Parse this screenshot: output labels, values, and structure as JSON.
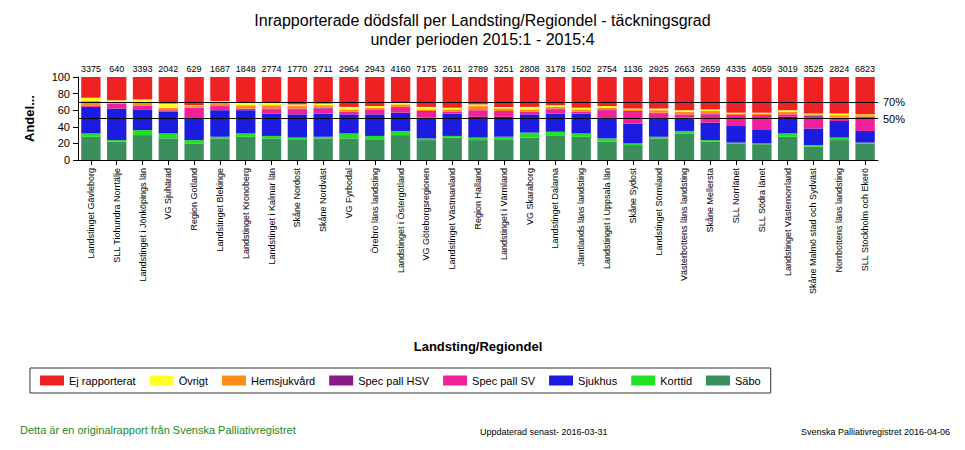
{
  "chart_data": {
    "type": "bar",
    "stacked": true,
    "grid": false,
    "legend": "bottom",
    "title": "Inrapporterade dödsfall per Landsting/Regiondel - täckningsgrad\nunder perioden 2015:1 - 2015:4",
    "x_label": "Landsting/Regiondel",
    "y_label": "Andel...",
    "categories": [
      "Landstinget Gävleborg",
      "SLL Tiohundra Norrtälje",
      "Landstinget i Jönköpings län",
      "VG Sjuhärad",
      "Region Gotland",
      "Landstinget Blekinge",
      "Landstinget Kronoberg",
      "Landstinget i Kalmar län",
      "Skåne Nordost",
      "Skåne Nordväst",
      "VG Fyrbodal",
      "Örebro läns landsting",
      "Landstinget i Östergötland",
      "VG Göteborgsregionen",
      "Landstinget Västmanland",
      "Region Halland",
      "Landstinget i Värmland",
      "VG Skaraborg",
      "Landstinget Dalarna",
      "Jämtlands läns landsting",
      "Landstinget i Uppsala län",
      "Skåne Sydost",
      "Landstinget Sörmland",
      "Västerbottens läns landsting",
      "Skåne Mellersta",
      "SLL Norrlänet",
      "SLL Södra länet",
      "Landstinget Västernorrland",
      "Skåne Malmö stad och Sydväst",
      "Norrbottens läns landsting",
      "SLL Stockholm och Ekerö"
    ],
    "totals": [
      3375,
      640,
      3393,
      2042,
      629,
      1687,
      1848,
      2774,
      1770,
      2711,
      2964,
      2943,
      4160,
      7175,
      2611,
      2789,
      3251,
      2808,
      3178,
      1502,
      2754,
      1136,
      2925,
      2663,
      2659,
      4335,
      4059,
      3019,
      3525,
      2824,
      6823
    ],
    "series": [
      {
        "name": "Säbo",
        "color": "#3a8f5c",
        "values": [
          28,
          22,
          30,
          26,
          20,
          26,
          28,
          26,
          25,
          26,
          26,
          25,
          30,
          24,
          27,
          24,
          24,
          27,
          29,
          28,
          22,
          18,
          26,
          32,
          22,
          20,
          19,
          28,
          16,
          24,
          20
        ]
      },
      {
        "name": "Korttid",
        "color": "#22e022",
        "values": [
          4,
          2,
          6,
          6,
          4,
          2,
          4,
          3,
          2,
          2,
          6,
          4,
          5,
          2,
          2,
          3,
          4,
          6,
          5,
          4,
          4,
          2,
          2,
          3,
          2,
          1,
          1,
          4,
          2,
          3,
          1
        ]
      },
      {
        "name": "Sjukhus",
        "color": "#1c1ce0",
        "values": [
          32,
          38,
          25,
          26,
          26,
          32,
          28,
          27,
          28,
          28,
          23,
          26,
          22,
          25,
          27,
          25,
          24,
          22,
          22,
          24,
          24,
          24,
          22,
          16,
          21,
          20,
          17,
          20,
          20,
          20,
          14
        ]
      },
      {
        "name": "Spec pall SV",
        "color": "#f0209a",
        "values": [
          1,
          6,
          4,
          2,
          13,
          5,
          2,
          5,
          6,
          6,
          3,
          6,
          6,
          7,
          2,
          8,
          7,
          3,
          5,
          2,
          10,
          14,
          6,
          4,
          10,
          12,
          16,
          3,
          14,
          4,
          16
        ]
      },
      {
        "name": "Spec pall HSV",
        "color": "#8a1a8a",
        "values": [
          0,
          0,
          0,
          0,
          0,
          0,
          0,
          1,
          1,
          1,
          0,
          0,
          1,
          1,
          0,
          0,
          0,
          0,
          1,
          0,
          1,
          1,
          1,
          0,
          1,
          1,
          1,
          0,
          1,
          0,
          1
        ]
      },
      {
        "name": "Hemsjukvård",
        "color": "#ff8c1a",
        "values": [
          6,
          2,
          4,
          3,
          2,
          4,
          4,
          4,
          3,
          3,
          3,
          2,
          3,
          2,
          3,
          5,
          3,
          3,
          2,
          3,
          2,
          2,
          3,
          3,
          3,
          2,
          2,
          3,
          2,
          3,
          2
        ]
      },
      {
        "name": "Övrigt",
        "color": "#ffff26",
        "values": [
          4,
          2,
          4,
          5,
          1,
          2,
          3,
          3,
          2,
          2,
          3,
          2,
          2,
          3,
          2,
          2,
          2,
          3,
          2,
          2,
          2,
          1,
          2,
          2,
          2,
          1,
          1,
          2,
          1,
          2,
          1
        ]
      },
      {
        "name": "Ej rapporterat",
        "color": "#ee2222",
        "values": [
          25,
          28,
          27,
          32,
          34,
          29,
          31,
          31,
          33,
          32,
          36,
          35,
          31,
          36,
          37,
          33,
          36,
          36,
          34,
          37,
          35,
          38,
          38,
          40,
          39,
          43,
          43,
          40,
          44,
          44,
          45
        ]
      }
    ],
    "reference_lines": [
      {
        "value": 70,
        "label": "70%"
      },
      {
        "value": 50,
        "label": "50%"
      }
    ],
    "ylim": [
      0,
      100
    ],
    "yticks": [
      0,
      20,
      40,
      60,
      80,
      100
    ],
    "notes": [
      "Detta är en originalrapport från Svenska Palliativregistret",
      "Uppdaterad senast- 2016-03-31",
      "Svenska Palliativregistret 2016-04-06"
    ]
  }
}
